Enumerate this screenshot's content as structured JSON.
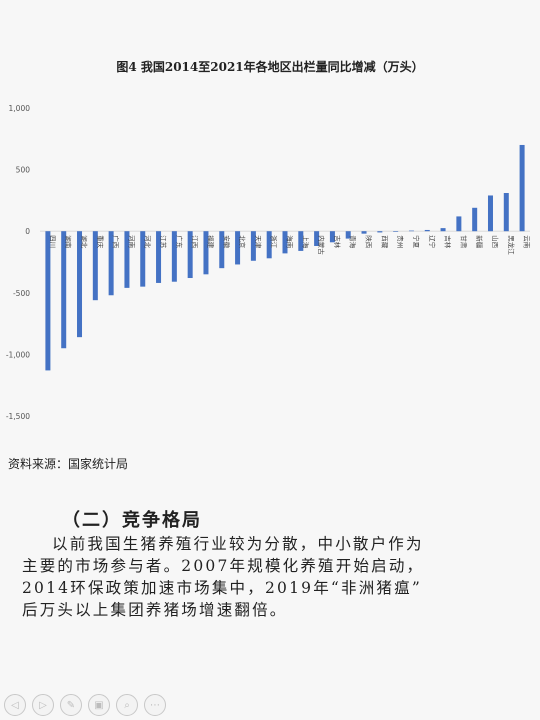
{
  "chart_data": {
    "type": "bar",
    "title": "图4 我国2014至2021年各地区出栏量同比增减（万头）",
    "ylim": [
      -1500,
      1000
    ],
    "yticks": [
      1000,
      500,
      0,
      -500,
      -1000,
      -1500
    ],
    "ytick_labels": [
      "1,000",
      "500",
      "0",
      "-500",
      "-1,000",
      "-1,500"
    ],
    "categories": [
      "四川",
      "湖南",
      "湖北",
      "重庆",
      "广西",
      "河南",
      "河北",
      "江苏",
      "广东",
      "江西",
      "福建",
      "安徽",
      "北京",
      "天津",
      "浙江",
      "海南",
      "上海",
      "内蒙古",
      "吉林",
      "青海",
      "陕西",
      "西藏",
      "贵州",
      "宁夏",
      "辽宁",
      "吉林",
      "甘肃",
      "新疆",
      "山西",
      "黑龙江",
      "云南"
    ],
    "values": [
      -1130,
      -950,
      -860,
      -560,
      -520,
      -460,
      -450,
      -420,
      -410,
      -380,
      -350,
      -300,
      -270,
      -240,
      -220,
      -180,
      -160,
      -120,
      -90,
      -60,
      -20,
      -10,
      -5,
      5,
      10,
      25,
      120,
      190,
      290,
      310,
      700
    ],
    "bar_color": "#4472c4",
    "grid": false
  },
  "source": "资料来源：国家统计局",
  "section": {
    "heading": "（二）竞争格局",
    "lines": [
      "以前我国生猪养殖行业较为分散，中小散户作为",
      "主要的市场参与者。2007年规模化养殖开始启动，",
      "2014环保政策加速市场集中，2019年“非洲猪瘟”",
      "后万头以上集团养猪场增速翻倍。"
    ]
  },
  "toolbar": {
    "icons": [
      "prev-icon",
      "next-icon",
      "edit-icon",
      "copy-icon",
      "zoom-icon",
      "more-icon"
    ],
    "glyphs": [
      "◁",
      "▷",
      "✎",
      "▣",
      "⌕",
      "⋯"
    ]
  }
}
